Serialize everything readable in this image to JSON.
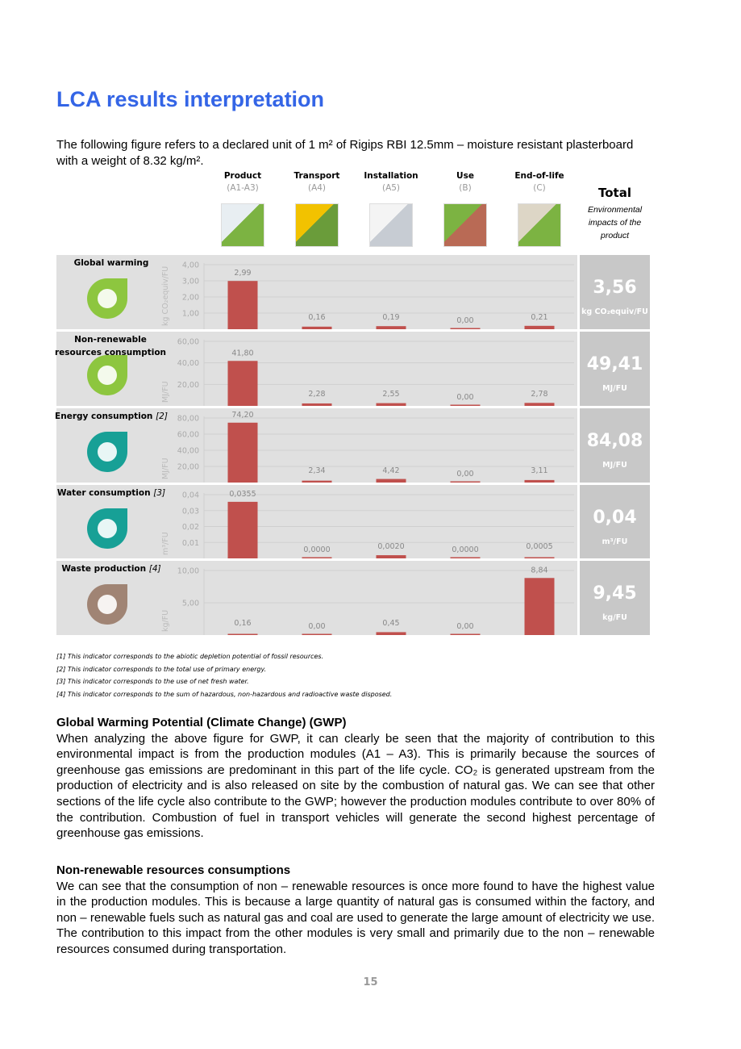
{
  "title": "LCA results interpretation",
  "intro": "The following figure refers to a declared unit of 1 m² of Rigips RBI 12.5mm – moisture resistant plasterboard with a weight of 8.32 kg/m².",
  "stages": [
    {
      "label": "Product",
      "code": "(A1-A3)",
      "image": "quarry-image"
    },
    {
      "label": "Transport",
      "code": "(A4)",
      "image": "truck-image"
    },
    {
      "label": "Installation",
      "code": "(A5)",
      "image": "installation-image"
    },
    {
      "label": "Use",
      "code": "(B)",
      "image": "house-image"
    },
    {
      "label": "End-of-life",
      "code": "(C)",
      "image": "landfill-image"
    }
  ],
  "total_header": {
    "title": "Total",
    "desc": "Environmental impacts of the product"
  },
  "colors": {
    "bar": "#c0504d",
    "panel": "#e0e0e0",
    "total": "#c8c8c8",
    "title": "#3465e6"
  },
  "chart_data": [
    {
      "type": "bar",
      "title": "Global warming",
      "ref": "",
      "ylabel": "kg CO₂equiv/FU",
      "ylim": [
        0,
        4
      ],
      "ticks": [
        "1,00",
        "2,00",
        "3,00",
        "4,00"
      ],
      "tick_values": [
        1,
        2,
        3,
        4
      ],
      "categories": [
        "Product",
        "Transport",
        "Installation",
        "Use",
        "End-of-life"
      ],
      "values": [
        2.99,
        0.16,
        0.19,
        0.0,
        0.21
      ],
      "labels": [
        "2,99",
        "0,16",
        "0,19",
        "0,00",
        "0,21"
      ],
      "total": "3,56",
      "total_unit": "kg CO₂equiv/FU",
      "icon": "co2-globe-icon",
      "icon_color": "#8dc63f"
    },
    {
      "type": "bar",
      "title": "Non-renewable resources consumption",
      "ref": "[1]",
      "ylabel": "MJ/FU",
      "ylim": [
        0,
        60
      ],
      "ticks": [
        "20,00",
        "40,00",
        "60,00"
      ],
      "tick_values": [
        20,
        40,
        60
      ],
      "categories": [
        "Product",
        "Transport",
        "Installation",
        "Use",
        "End-of-life"
      ],
      "values": [
        41.8,
        2.28,
        2.55,
        0.0,
        2.78
      ],
      "labels": [
        "41,80",
        "2,28",
        "2,55",
        "0,00",
        "2,78"
      ],
      "total": "49,41",
      "total_unit": "MJ/FU",
      "icon": "globe-mining-icon",
      "icon_color": "#8dc63f"
    },
    {
      "type": "bar",
      "title": "Energy consumption",
      "ref": "[2]",
      "ylabel": "MJ/FU",
      "ylim": [
        0,
        80
      ],
      "ticks": [
        "20,00",
        "40,00",
        "60,00",
        "80,00"
      ],
      "tick_values": [
        20,
        40,
        60,
        80
      ],
      "categories": [
        "Product",
        "Transport",
        "Installation",
        "Use",
        "End-of-life"
      ],
      "values": [
        74.2,
        2.34,
        4.42,
        0.0,
        3.11
      ],
      "labels": [
        "74,20",
        "2,34",
        "4,42",
        "0,00",
        "3,11"
      ],
      "total": "84,08",
      "total_unit": "MJ/FU",
      "icon": "oil-barrel-icon",
      "icon_color": "#17a096"
    },
    {
      "type": "bar",
      "title": "Water consumption",
      "ref": "[3]",
      "ylabel": "m³/FU",
      "ylim": [
        0,
        0.04
      ],
      "ticks": [
        "0,01",
        "0,02",
        "0,03",
        "0,04"
      ],
      "tick_values": [
        0.01,
        0.02,
        0.03,
        0.04
      ],
      "categories": [
        "Product",
        "Transport",
        "Installation",
        "Use",
        "End-of-life"
      ],
      "values": [
        0.0355,
        0.0,
        0.002,
        0.0,
        0.0005
      ],
      "labels": [
        "0,0355",
        "0,0000",
        "0,0020",
        "0,0000",
        "0,0005"
      ],
      "total": "0,04",
      "total_unit": "m³/FU",
      "icon": "water-drops-icon",
      "icon_color": "#17a096"
    },
    {
      "type": "bar",
      "title": "Waste production",
      "ref": "[4]",
      "ylabel": "kg/FU",
      "ylim": [
        0,
        10
      ],
      "ticks": [
        "5,00",
        "10,00"
      ],
      "tick_values": [
        5,
        10
      ],
      "categories": [
        "Product",
        "Transport",
        "Installation",
        "Use",
        "End-of-life"
      ],
      "values": [
        0.16,
        0.0,
        0.45,
        0.0,
        8.84
      ],
      "labels": [
        "0,16",
        "0,00",
        "0,45",
        "0,00",
        "8,84"
      ],
      "total": "9,45",
      "total_unit": "kg/FU",
      "icon": "hazard-bin-icon",
      "icon_color": "#a08474"
    }
  ],
  "footnotes": [
    "[1] This indicator corresponds to the abiotic depletion potential of fossil resources.",
    "[2] This indicator corresponds to the total use of primary energy.",
    "[3] This indicator corresponds to the use of net fresh water.",
    "[4] This indicator corresponds to the sum of hazardous, non-hazardous and radioactive waste disposed."
  ],
  "sections": [
    {
      "heading": "Global Warming Potential (Climate Change) (GWP)",
      "body": "When analyzing the above figure for GWP, it can clearly be seen that the majority of contribution to this environmental impact is from the production modules (A1 – A3). This is primarily because the sources of greenhouse gas emissions are predominant in this part of the life cycle. CO₂ is generated upstream from the production of electricity and is also released on site by the combustion of natural gas. We can see that other sections of the life cycle also contribute to the GWP; however the production modules contribute to over 80% of the contribution. Combustion of fuel in transport vehicles will generate the second highest percentage of greenhouse gas emissions."
    },
    {
      "heading": "Non-renewable resources consumptions",
      "body": "We can see that the consumption of non – renewable resources is once more found to have the highest value in the production modules. This is because a large quantity of natural gas is consumed within the factory, and non – renewable fuels such as natural gas and coal are used to generate the large amount of electricity we use. The contribution to this impact from the other modules is very small and primarily due to the non – renewable resources consumed during transportation."
    }
  ],
  "page_number": "15"
}
